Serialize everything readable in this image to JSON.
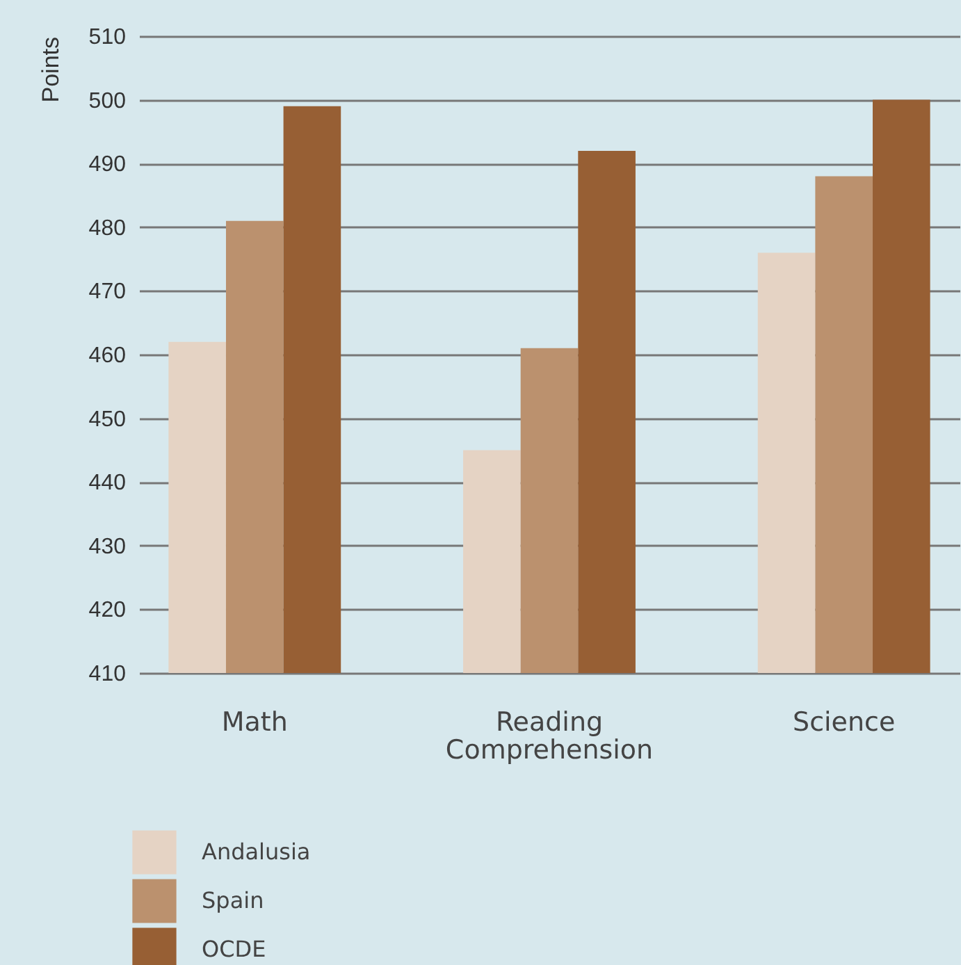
{
  "chart_data": {
    "type": "bar",
    "ylabel": "Points",
    "categories": [
      "Math",
      "Reading Comprehension",
      "Science"
    ],
    "series": [
      {
        "name": "Andalusia",
        "color": "#e5d3c4",
        "values": [
          462,
          445,
          476
        ]
      },
      {
        "name": "Spain",
        "color": "#bb916e",
        "values": [
          481,
          461,
          488
        ]
      },
      {
        "name": "OCDE",
        "color": "#975f34",
        "values": [
          499,
          492,
          500
        ]
      }
    ],
    "ylim": [
      410,
      510
    ],
    "yticks": [
      410,
      420,
      430,
      440,
      450,
      460,
      470,
      480,
      490,
      500,
      510
    ],
    "grid": "y",
    "legend": "bottom left"
  }
}
